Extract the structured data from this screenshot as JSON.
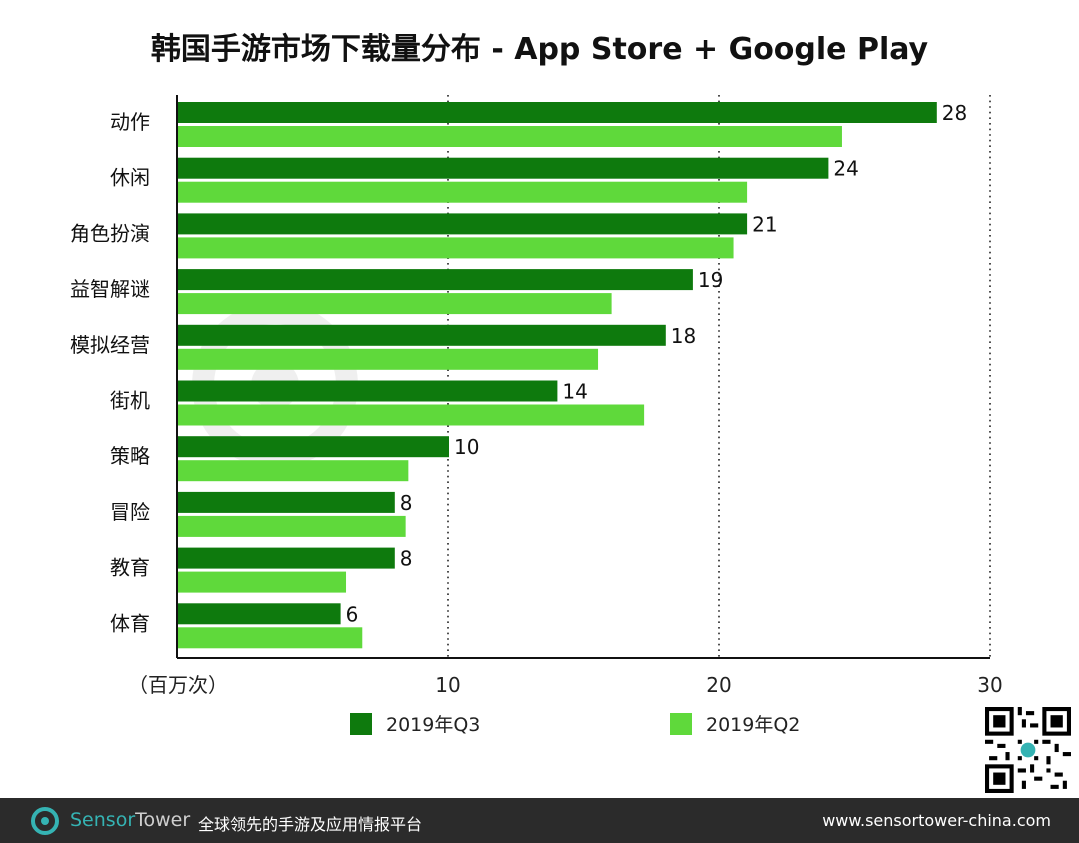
{
  "chart_data": {
    "type": "bar",
    "orientation": "horizontal",
    "title": "韩国手游市场下载量分布 - App Store + Google Play",
    "xlabel": "（百万次）",
    "ylabel": "",
    "xlim": [
      0,
      30
    ],
    "xticks": [
      10,
      20,
      30
    ],
    "grid": "vertical-dotted",
    "categories": [
      "动作",
      "休闲",
      "角色扮演",
      "益智解谜",
      "模拟经营",
      "街机",
      "策略",
      "冒险",
      "教育",
      "体育"
    ],
    "series": [
      {
        "name": "2019年Q3",
        "color": "#0e7a0d",
        "values": [
          28,
          24,
          21,
          19,
          18,
          14,
          10,
          8,
          8,
          6
        ],
        "data_labels": [
          "28",
          "24",
          "21",
          "19",
          "18",
          "14",
          "10",
          "8",
          "8",
          "6"
        ]
      },
      {
        "name": "2019年Q2",
        "color": "#5fd93b",
        "values": [
          24.5,
          21,
          20.5,
          16,
          15.5,
          17.2,
          8.5,
          8.4,
          6.2,
          6.8
        ]
      }
    ]
  },
  "footer": {
    "brand_sensor": "Sensor",
    "brand_tower": "Tower",
    "slogan": "全球领先的手游及应用情报平台",
    "url": "www.sensortower-china.com"
  },
  "icons": {
    "logo": "sensortower-logo-icon",
    "qr": "qr-code-icon"
  }
}
